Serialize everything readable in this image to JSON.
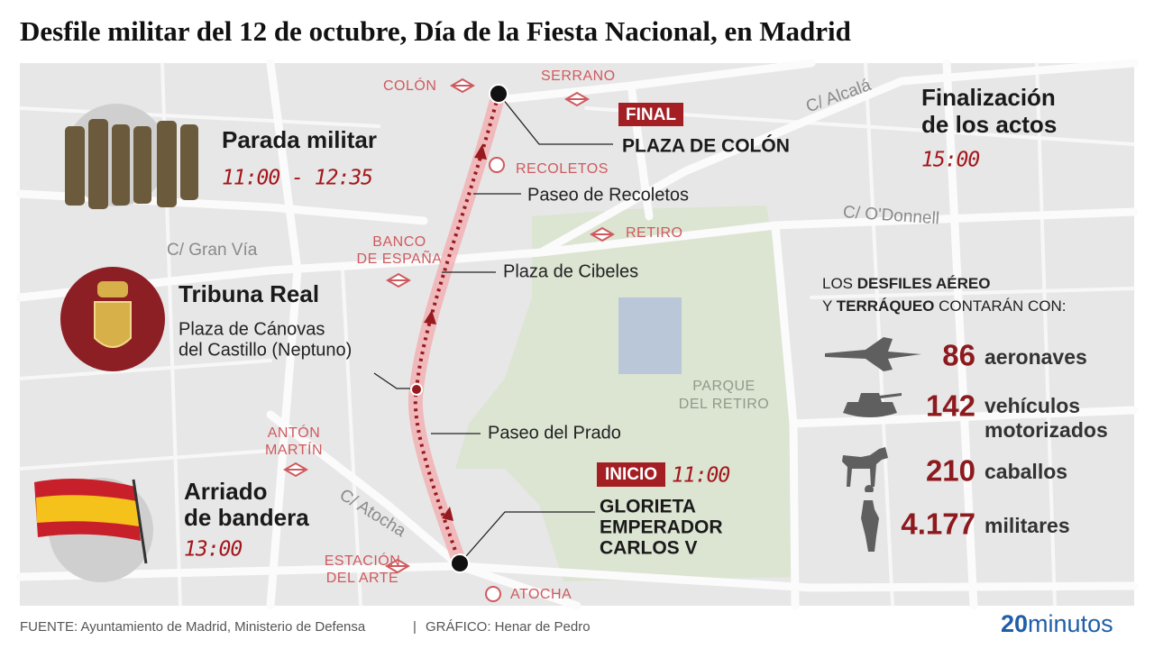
{
  "header": {
    "title": "Desfile militar del 12 de octubre, Día de la Fiesta Nacional, en Madrid"
  },
  "map": {
    "stations": [
      [
        "COLÓN"
      ],
      [
        "SERRANO"
      ],
      [
        "RECOLETOS"
      ],
      [
        "BANCO",
        "DE ESPAÑA"
      ],
      [
        "RETIRO"
      ],
      [
        "ANTÓN",
        "MARTÍN"
      ],
      [
        "ESTACIÓN",
        "DEL ARTE"
      ],
      [
        "ATOCHA"
      ]
    ],
    "streets": [
      "C/ Alcalá",
      "C/ O'Donnell",
      "C/ Gran Vía",
      "C/ Atocha"
    ],
    "park": [
      "PARQUE",
      "DEL RETIRO"
    ],
    "route_labels": [
      "Paseo de Recoletos",
      "Plaza de Cibeles",
      "Paseo del Prado"
    ],
    "end": {
      "tag": "FINAL",
      "place": "PLAZA DE COLÓN"
    },
    "start": {
      "tag": "INICIO",
      "time": "11:00",
      "place": [
        "GLORIETA",
        "EMPERADOR",
        "CARLOS V"
      ]
    }
  },
  "events": [
    {
      "title": [
        "Parada militar"
      ],
      "time": "11:00 - 12:35"
    },
    {
      "title": [
        "Tribuna Real"
      ],
      "place": [
        "Plaza de Cánovas",
        "del Castillo (Neptuno)"
      ]
    },
    {
      "title": [
        "Arriado",
        "de bandera"
      ],
      "time": "13:00"
    }
  ],
  "closing": {
    "title": [
      "Finalización",
      "de los actos"
    ],
    "time": "15:00"
  },
  "stats": {
    "heading": [
      [
        "LOS ",
        "DESFILES AÉREO"
      ],
      [
        "Y ",
        "TERRÁQUEO",
        " CONTARÁN CON:"
      ]
    ],
    "items": [
      {
        "number": "86",
        "label": [
          "aeronaves"
        ]
      },
      {
        "number": "142",
        "label": [
          "vehículos",
          "motorizados"
        ]
      },
      {
        "number": "210",
        "label": [
          "caballos"
        ]
      },
      {
        "number": "4.177",
        "label": [
          "militares"
        ]
      }
    ]
  },
  "footer": {
    "source": "FUENTE: Ayuntamiento de Madrid, Ministerio de Defensa",
    "separator": "|",
    "credit": "GRÁFICO: Henar de Pedro",
    "logo": [
      "20",
      "minutos"
    ]
  }
}
